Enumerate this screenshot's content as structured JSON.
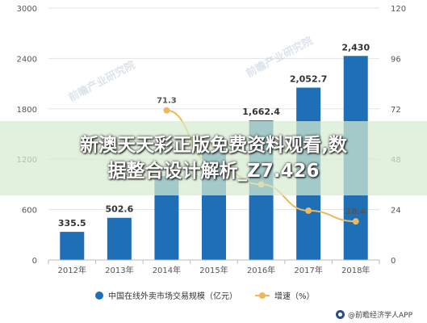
{
  "chart_data": {
    "type": "bar+line",
    "categories": [
      "2012年",
      "2013年",
      "2014年",
      "2015年",
      "2016年",
      "2017年",
      "2018年"
    ],
    "series": [
      {
        "name": "中国在线外卖市场交易规模（亿元）",
        "type": "bar",
        "axis": "left",
        "values": [
          335.5,
          502.6,
          1000,
          1300,
          1662.4,
          2052.7,
          2430
        ],
        "labels": [
          "335.5",
          "502.6",
          "",
          "",
          "1,662.4",
          "2,052.7",
          "2,430"
        ]
      },
      {
        "name": "增速（%）",
        "type": "line",
        "axis": "right",
        "values": [
          null,
          null,
          71.3,
          45,
          36,
          23.5,
          18.4
        ],
        "labels": [
          "",
          "",
          "71.3",
          "",
          "",
          "",
          "18.4"
        ]
      }
    ],
    "y_left": {
      "ticks": [
        "0",
        "600",
        "1200",
        "1800",
        "2400",
        "3000"
      ],
      "range": [
        0,
        3000
      ]
    },
    "y_right": {
      "ticks": [
        "0",
        "24",
        "48",
        "72",
        "96",
        "120"
      ],
      "range": [
        0,
        120
      ]
    },
    "legend_position": "bottom",
    "grid": "horizontal",
    "colors": {
      "bar": "#1f6fb6",
      "line": "#f0b85a",
      "grid": "#e3e3e3",
      "axis_text": "#555555"
    }
  },
  "overlay": {
    "line1": "新澳天天彩正版免费资料观看,数",
    "line2": "据整合设计解析_Z7.426"
  },
  "legend": {
    "bar_label": "中国在线外卖市场交易规模（亿元）",
    "line_label": "增速（%）"
  },
  "source": "@前瞻经济学人APP",
  "watermark": "前瞻产业研究院"
}
